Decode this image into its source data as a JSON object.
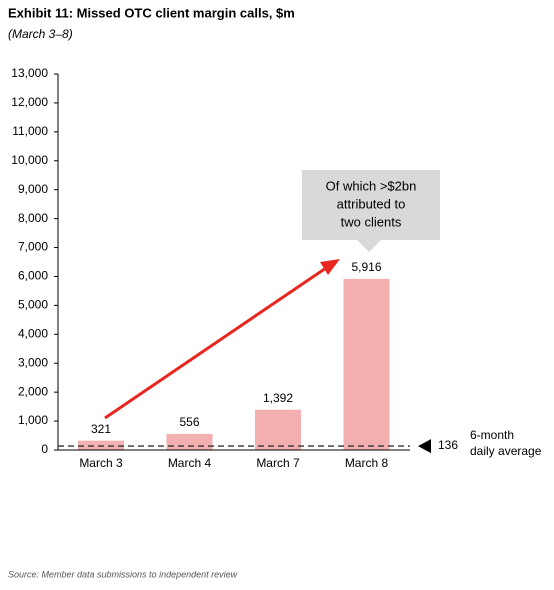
{
  "chart_data": {
    "type": "bar",
    "title": "Exhibit 11: Missed OTC client margin calls, $m",
    "subtitle": "(March 3–8)",
    "categories": [
      "March 3",
      "March 4",
      "March 7",
      "March 8"
    ],
    "values": [
      321,
      556,
      1392,
      5916
    ],
    "value_labels": [
      "321",
      "556",
      "1,392",
      "5,916"
    ],
    "color": "#f4b0b0",
    "ylim": [
      0,
      13000
    ],
    "yticks": [
      0,
      {
        "value": 1000,
        "label": "1,000"
      },
      {
        "value": 2000,
        "label": "2,000"
      },
      {
        "value": 3000,
        "label": "3,000"
      },
      {
        "value": 4000,
        "label": "4,000"
      },
      {
        "value": 5000,
        "label": "5,000"
      },
      {
        "value": 6000,
        "label": "6,000"
      },
      {
        "value": 7000,
        "label": "7,000"
      },
      {
        "value": 8000,
        "label": "8,000"
      },
      {
        "value": 9000,
        "label": "9,000"
      },
      {
        "value": 10000,
        "label": "10,000"
      },
      {
        "value": 11000,
        "label": "11,000"
      },
      {
        "value": 12000,
        "label": "12,000"
      },
      {
        "value": 13000,
        "label": "13,000"
      }
    ],
    "reference_line": {
      "value": 136,
      "lines": [
        "6-month",
        "daily average"
      ]
    },
    "callout": [
      "Of which >$2bn",
      "attributed to",
      "two clients"
    ],
    "source": "Source: Member data submissions to independent review"
  }
}
